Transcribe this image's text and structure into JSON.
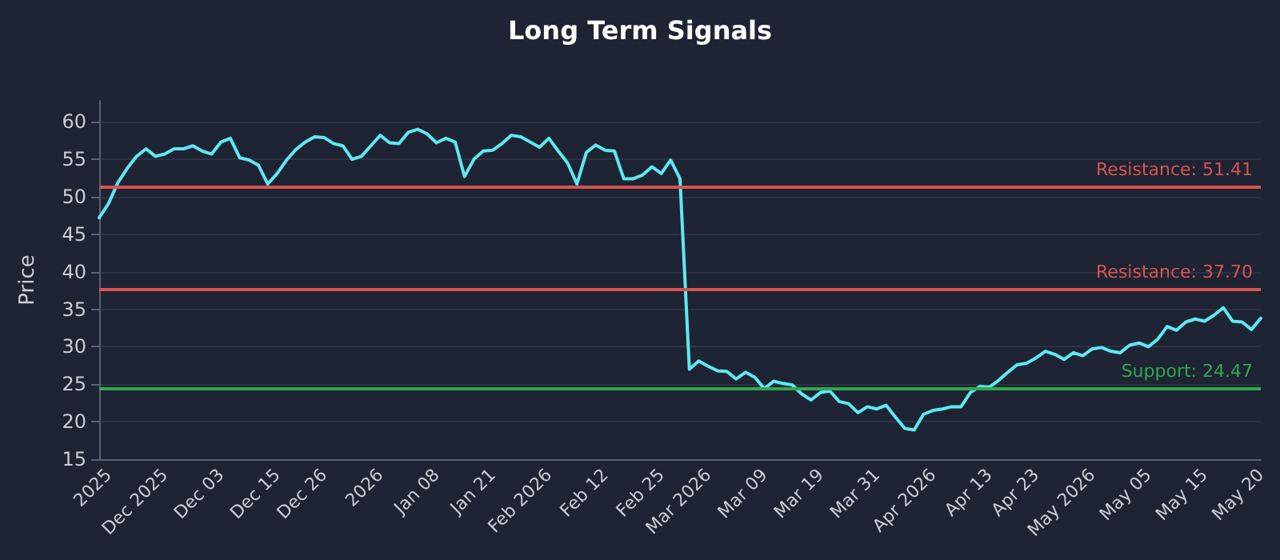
{
  "chart_data": {
    "type": "line",
    "title": "Long Term Signals",
    "ylabel": "Price",
    "categories": [
      null,
      "2025",
      null,
      null,
      null,
      null,
      null,
      "Dec 2025",
      null,
      null,
      null,
      null,
      null,
      "Dec 03",
      null,
      null,
      null,
      null,
      null,
      "Dec 15",
      null,
      null,
      null,
      null,
      "Dec 26",
      null,
      null,
      null,
      null,
      null,
      "2026",
      null,
      null,
      null,
      null,
      null,
      "Jan 08",
      null,
      null,
      null,
      null,
      null,
      "Jan 21",
      null,
      null,
      null,
      null,
      null,
      "Feb 2026",
      null,
      null,
      null,
      null,
      null,
      "Feb 12",
      null,
      null,
      null,
      null,
      null,
      "Feb 25",
      null,
      null,
      null,
      null,
      "Mar 2026",
      null,
      null,
      null,
      null,
      null,
      "Mar 09",
      null,
      null,
      null,
      null,
      null,
      "Mar 19",
      null,
      null,
      null,
      null,
      null,
      "Mar 31",
      null,
      null,
      null,
      null,
      null,
      "Apr 2026",
      null,
      null,
      null,
      null,
      null,
      "Apr 13",
      null,
      null,
      null,
      null,
      "Apr 23",
      null,
      null,
      null,
      null,
      null,
      "May 2026",
      null,
      null,
      null,
      null,
      null,
      "May 05",
      null,
      null,
      null,
      null,
      null,
      "May 15",
      null,
      null,
      null,
      null,
      null,
      "May 20"
    ],
    "series": [
      {
        "color": "#5ee8f2",
        "values": [
          47.2,
          49.1,
          51.9,
          53.8,
          55.4,
          56.4,
          55.4,
          55.7,
          56.4,
          56.4,
          56.8,
          56.1,
          55.7,
          57.3,
          57.8,
          55.2,
          54.9,
          54.2,
          51.7,
          53.1,
          54.9,
          56.3,
          57.3,
          58.0,
          57.9,
          57.1,
          56.8,
          55.0,
          55.4,
          56.8,
          58.2,
          57.2,
          57.1,
          58.6,
          59.0,
          58.4,
          57.2,
          57.8,
          57.3,
          52.7,
          55.0,
          56.1,
          56.2,
          57.1,
          58.2,
          58.0,
          57.3,
          56.6,
          57.8,
          56.1,
          54.5,
          51.7,
          55.9,
          56.9,
          56.2,
          56.1,
          52.4,
          52.4,
          52.9,
          54.0,
          53.1,
          54.9,
          52.4,
          27.0,
          28.1,
          27.4,
          26.8,
          26.7,
          25.7,
          26.6,
          25.9,
          24.4,
          25.4,
          25.1,
          24.9,
          23.7,
          22.9,
          23.9,
          24.1,
          22.7,
          22.4,
          21.2,
          22.0,
          21.7,
          22.2,
          20.6,
          19.1,
          18.9,
          21.0,
          21.5,
          21.7,
          22.0,
          22.0,
          23.9,
          24.7,
          24.6,
          25.5,
          26.6,
          27.6,
          27.8,
          28.5,
          29.4,
          29.0,
          28.3,
          29.2,
          28.8,
          29.7,
          29.9,
          29.4,
          29.2,
          30.2,
          30.5,
          30.0,
          31.0,
          32.7,
          32.2,
          33.3,
          33.7,
          33.4,
          34.2,
          35.2,
          33.4,
          33.3,
          32.3,
          33.8
        ]
      }
    ],
    "ylim": [
      15,
      62.8
    ],
    "yticks": [
      15,
      20,
      25,
      30,
      35,
      40,
      45,
      50,
      55,
      60
    ],
    "grid": "y",
    "marker": "none",
    "line_style": "solid",
    "ref_lines": [
      {
        "axis": "y",
        "value": 51.41,
        "label": "Resistance: 51.41",
        "color": "#d9534f"
      },
      {
        "axis": "y",
        "value": 37.7,
        "label": "Resistance: 37.70",
        "color": "#d9534f"
      },
      {
        "axis": "y",
        "value": 24.47,
        "label": "Support: 24.47",
        "color": "#2fa84f"
      }
    ]
  }
}
